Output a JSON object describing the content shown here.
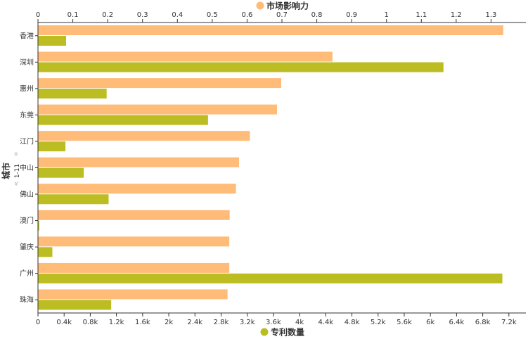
{
  "chart_data": {
    "type": "bar",
    "orientation": "horizontal",
    "ylabel": "城市",
    "categories": [
      "香港",
      "深圳",
      "惠州",
      "东莞",
      "江门",
      "中山",
      "佛山",
      "澳门",
      "肇庆",
      "广州",
      "珠海"
    ],
    "series": [
      {
        "name": "市场影响力",
        "color": "#ffbb78",
        "axis": "top",
        "values": [
          1.335,
          0.845,
          0.698,
          0.686,
          0.608,
          0.577,
          0.568,
          0.55,
          0.549,
          0.549,
          0.544
        ]
      },
      {
        "name": "专利数量",
        "color": "#bcbd22",
        "axis": "bottom",
        "values": [
          430,
          6200,
          1050,
          2600,
          420,
          700,
          1080,
          20,
          220,
          7100,
          1120
        ]
      }
    ],
    "top_axis": {
      "range": [
        0,
        1.4
      ],
      "ticks": [
        "0",
        "0.1",
        "0.2",
        "0.3",
        "0.4",
        "0.5",
        "0.6",
        "0.7",
        "0.8",
        "0.9",
        "1",
        "1.1",
        "1.2",
        "1.3"
      ]
    },
    "bottom_axis": {
      "range": [
        0,
        7460
      ],
      "ticks": [
        "0",
        "0.4k",
        "0.8k",
        "1.2k",
        "1.6k",
        "2k",
        "2.4k",
        "2.8k",
        "3.2k",
        "3.6k",
        "4k",
        "4.4k",
        "4.8k",
        "5.2k",
        "5.6k",
        "6k",
        "6.4k",
        "6.8k",
        "7.2k"
      ]
    },
    "scroll_indicator": "1-11",
    "legend_position": "top and bottom",
    "grid": false
  }
}
